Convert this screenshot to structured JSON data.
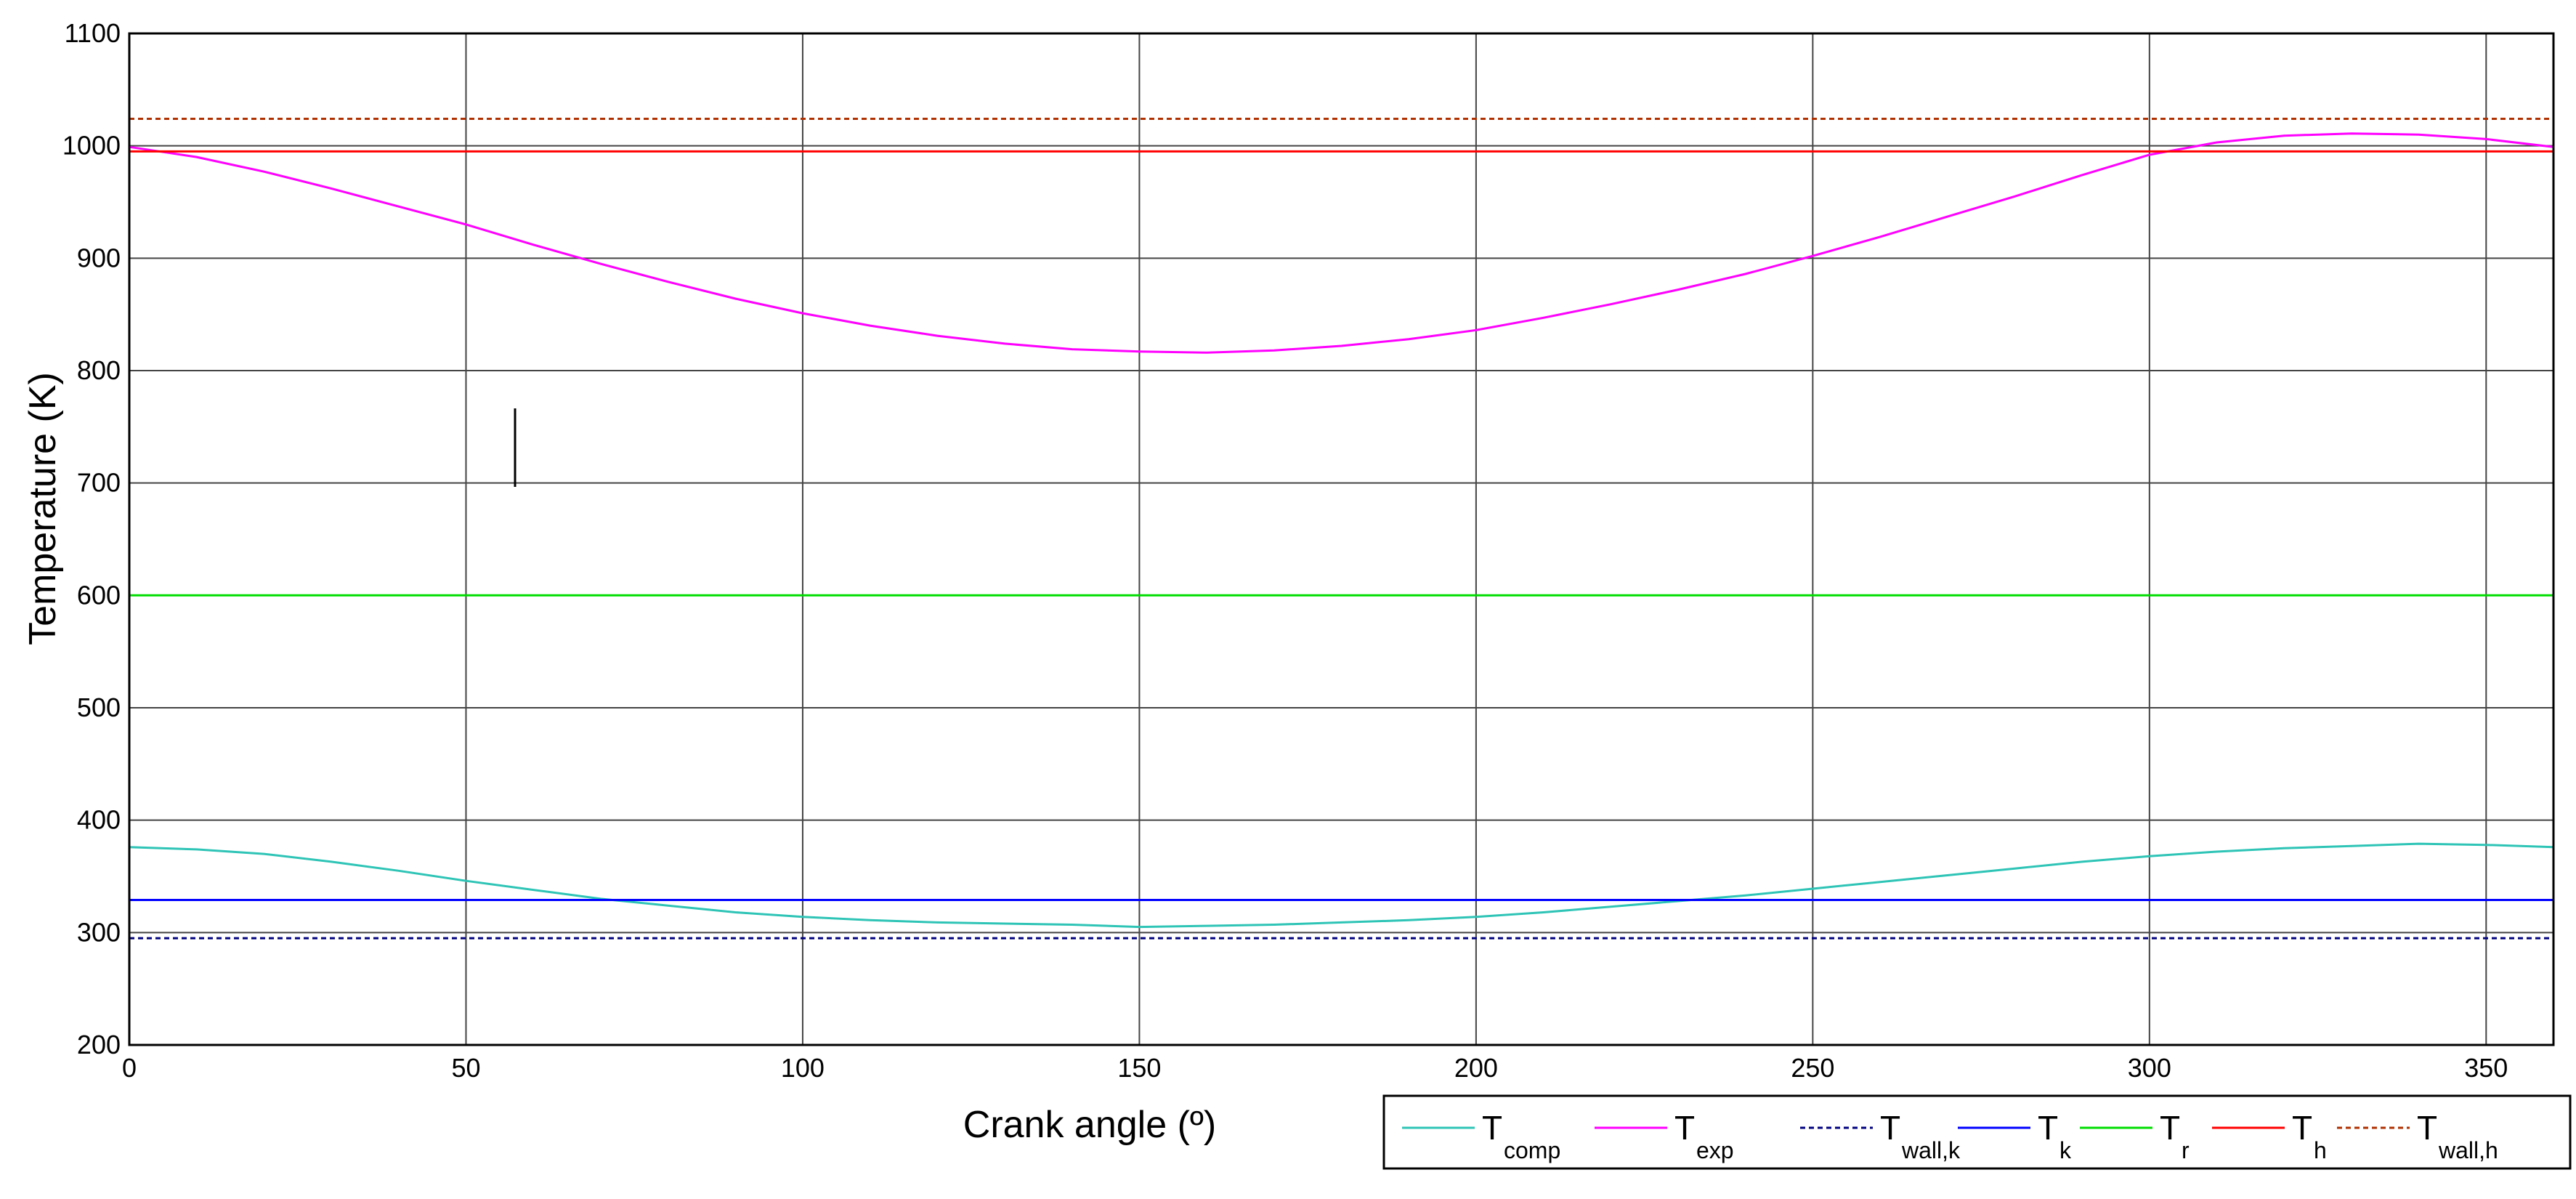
{
  "chart_data": {
    "type": "line",
    "xlabel": "Crank angle (º)",
    "ylabel": "Temperature (K)",
    "xlim": [
      0,
      360
    ],
    "ylim": [
      200,
      1100
    ],
    "xticks": [
      0,
      50,
      100,
      150,
      200,
      250,
      300,
      350
    ],
    "yticks": [
      200,
      300,
      400,
      500,
      600,
      700,
      800,
      900,
      1000,
      1100
    ],
    "grid": true,
    "legend_position": "bottom-right, outside plot area",
    "series": [
      {
        "name": "T_comp",
        "label_main": "T",
        "label_sub": "comp",
        "color": "#2EC4B6",
        "dash": "solid",
        "x": [
          0,
          10,
          20,
          30,
          40,
          50,
          60,
          70,
          80,
          90,
          100,
          110,
          120,
          130,
          140,
          150,
          160,
          170,
          180,
          190,
          200,
          210,
          220,
          230,
          240,
          250,
          260,
          270,
          280,
          290,
          300,
          310,
          320,
          330,
          340,
          350,
          360
        ],
        "y": [
          376,
          374,
          370,
          363,
          355,
          346,
          338,
          330,
          324,
          318,
          314,
          311,
          309,
          308,
          307,
          305,
          306,
          307,
          309,
          311,
          314,
          318,
          323,
          328,
          333,
          339,
          345,
          351,
          357,
          363,
          368,
          372,
          375,
          377,
          379,
          378,
          376
        ]
      },
      {
        "name": "T_exp",
        "label_main": "T",
        "label_sub": "exp",
        "color": "#FF00FF",
        "dash": "solid",
        "x": [
          0,
          10,
          20,
          30,
          40,
          50,
          60,
          70,
          80,
          90,
          100,
          110,
          120,
          130,
          140,
          150,
          160,
          170,
          180,
          190,
          200,
          210,
          220,
          230,
          240,
          250,
          260,
          270,
          280,
          290,
          300,
          310,
          320,
          330,
          340,
          350,
          360
        ],
        "y": [
          999,
          990,
          977,
          962,
          946,
          930,
          912,
          895,
          879,
          864,
          851,
          840,
          831,
          824,
          819,
          817,
          816,
          818,
          822,
          828,
          836,
          847,
          859,
          872,
          886,
          902,
          919,
          937,
          955,
          974,
          992,
          1003,
          1009,
          1011,
          1010,
          1006,
          999
        ]
      },
      {
        "name": "T_wall,k",
        "label_main": "T",
        "label_sub": "wall,k",
        "color": "#000080",
        "dash": "dashed",
        "x": [
          0,
          360
        ],
        "y": [
          295,
          295
        ]
      },
      {
        "name": "T_k",
        "label_main": "T",
        "label_sub": "k",
        "color": "#0000FF",
        "dash": "solid",
        "x": [
          0,
          360
        ],
        "y": [
          329,
          329
        ]
      },
      {
        "name": "T_r",
        "label_main": "T",
        "label_sub": "r",
        "color": "#00DD00",
        "dash": "solid",
        "x": [
          0,
          360
        ],
        "y": [
          600,
          600
        ]
      },
      {
        "name": "T_h",
        "label_main": "T",
        "label_sub": "h",
        "color": "#FF0000",
        "dash": "solid",
        "x": [
          0,
          360
        ],
        "y": [
          995,
          995
        ]
      },
      {
        "name": "T_wall,h",
        "label_main": "T",
        "label_sub": "wall,h",
        "color": "#B03000",
        "dash": "dashed",
        "x": [
          0,
          360
        ],
        "y": [
          1024,
          1024
        ]
      }
    ]
  }
}
